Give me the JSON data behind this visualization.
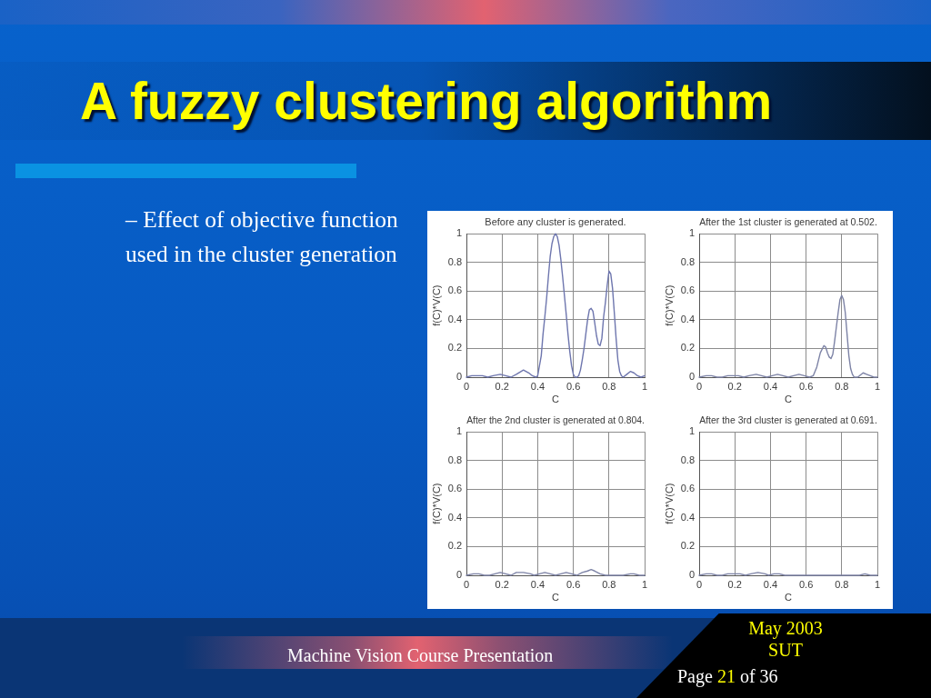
{
  "chart_data": [
    {
      "type": "other",
      "title": "A fuzzy clustering algorithm",
      "annotations": [
        "– Effect of objective function used in the cluster generation",
        "Machine Vision Course Presentation",
        "May 2003",
        "SUT",
        "Page 21 of 36"
      ]
    },
    {
      "type": "line",
      "title": "Before any cluster is generated.",
      "xlabel": "C",
      "ylabel": "f(C)*V(C)",
      "x": [
        0,
        0.03,
        0.06,
        0.09,
        0.12,
        0.15,
        0.19,
        0.22,
        0.25,
        0.28,
        0.32,
        0.35,
        0.37,
        0.39,
        0.4,
        0.41,
        0.42,
        0.43,
        0.44,
        0.45,
        0.46,
        0.47,
        0.48,
        0.49,
        0.5,
        0.51,
        0.52,
        0.53,
        0.54,
        0.55,
        0.56,
        0.57,
        0.58,
        0.59,
        0.6,
        0.61,
        0.62,
        0.63,
        0.64,
        0.65,
        0.66,
        0.67,
        0.68,
        0.69,
        0.7,
        0.71,
        0.72,
        0.73,
        0.74,
        0.75,
        0.76,
        0.77,
        0.78,
        0.79,
        0.8,
        0.81,
        0.82,
        0.83,
        0.84,
        0.85,
        0.86,
        0.87,
        0.88,
        0.9,
        0.92,
        0.94,
        0.96,
        0.98,
        1
      ],
      "series": [
        {
          "color": "#6e76ae",
          "values": [
            0,
            0.01,
            0.01,
            0.01,
            0,
            0.01,
            0.02,
            0.01,
            0,
            0.02,
            0.05,
            0.03,
            0.01,
            0,
            0.01,
            0.08,
            0.15,
            0.3,
            0.42,
            0.55,
            0.7,
            0.84,
            0.93,
            0.98,
            1,
            0.98,
            0.92,
            0.82,
            0.7,
            0.57,
            0.44,
            0.3,
            0.18,
            0.08,
            0.02,
            0,
            0,
            0.01,
            0.05,
            0.12,
            0.2,
            0.3,
            0.4,
            0.47,
            0.48,
            0.46,
            0.38,
            0.29,
            0.23,
            0.22,
            0.27,
            0.42,
            0.52,
            0.64,
            0.74,
            0.72,
            0.62,
            0.45,
            0.27,
            0.12,
            0.04,
            0.01,
            0,
            0.02,
            0.04,
            0.03,
            0.01,
            0,
            0.01
          ]
        }
      ],
      "xlim": [
        0,
        1
      ],
      "xticks": [
        0,
        0.2,
        0.4,
        0.6,
        0.8,
        1
      ],
      "ylim": [
        0,
        1
      ],
      "yticks": [
        0,
        0.2,
        0.4,
        0.6,
        0.8,
        1
      ],
      "grid": true,
      "marker": "none"
    },
    {
      "type": "line",
      "title": "After the 1st cluster is generated at 0.502.",
      "xlabel": "C",
      "ylabel": "f(C)*V(C)",
      "x": [
        0,
        0.04,
        0.07,
        0.1,
        0.13,
        0.16,
        0.19,
        0.22,
        0.25,
        0.28,
        0.32,
        0.35,
        0.38,
        0.41,
        0.44,
        0.47,
        0.5,
        0.53,
        0.56,
        0.59,
        0.62,
        0.64,
        0.66,
        0.68,
        0.7,
        0.71,
        0.72,
        0.73,
        0.74,
        0.75,
        0.76,
        0.77,
        0.78,
        0.79,
        0.8,
        0.81,
        0.82,
        0.83,
        0.84,
        0.85,
        0.86,
        0.87,
        0.89,
        0.92,
        0.94,
        0.96,
        0.98,
        1
      ],
      "series": [
        {
          "color": "#7d83a6",
          "values": [
            0,
            0.01,
            0.01,
            0,
            0,
            0.01,
            0.01,
            0.01,
            0,
            0.01,
            0.02,
            0.01,
            0,
            0.01,
            0.02,
            0.01,
            0,
            0.01,
            0.02,
            0.01,
            0,
            0.01,
            0.07,
            0.17,
            0.22,
            0.21,
            0.17,
            0.14,
            0.13,
            0.16,
            0.25,
            0.35,
            0.45,
            0.54,
            0.57,
            0.54,
            0.45,
            0.3,
            0.15,
            0.06,
            0.02,
            0,
            0,
            0.03,
            0.02,
            0.01,
            0,
            0
          ]
        }
      ],
      "xlim": [
        0,
        1
      ],
      "xticks": [
        0,
        0.2,
        0.4,
        0.6,
        0.8,
        1
      ],
      "ylim": [
        0,
        1
      ],
      "yticks": [
        0,
        0.2,
        0.4,
        0.6,
        0.8,
        1
      ],
      "grid": true,
      "marker": "none"
    },
    {
      "type": "line",
      "title": "After the 2nd cluster is generated at 0.804.",
      "xlabel": "C",
      "ylabel": "f(C)*V(C)",
      "x": [
        0,
        0.04,
        0.07,
        0.1,
        0.13,
        0.16,
        0.19,
        0.22,
        0.25,
        0.28,
        0.32,
        0.36,
        0.38,
        0.41,
        0.44,
        0.47,
        0.5,
        0.53,
        0.56,
        0.59,
        0.62,
        0.65,
        0.68,
        0.7,
        0.72,
        0.75,
        0.78,
        0.84,
        0.88,
        0.92,
        0.94,
        0.97,
        1
      ],
      "series": [
        {
          "color": "#7d83a6",
          "values": [
            0,
            0.01,
            0.01,
            0,
            0,
            0.01,
            0.02,
            0.01,
            0,
            0.02,
            0.02,
            0.01,
            0,
            0.01,
            0.02,
            0.01,
            0,
            0.01,
            0.02,
            0.01,
            0,
            0.02,
            0.03,
            0.04,
            0.03,
            0.01,
            0,
            0,
            0,
            0.01,
            0.01,
            0,
            0
          ]
        }
      ],
      "xlim": [
        0,
        1
      ],
      "xticks": [
        0,
        0.2,
        0.4,
        0.6,
        0.8,
        1
      ],
      "ylim": [
        0,
        1
      ],
      "yticks": [
        0,
        0.2,
        0.4,
        0.6,
        0.8,
        1
      ],
      "grid": true,
      "marker": "none"
    },
    {
      "type": "line",
      "title": "After the 3rd cluster is generated at 0.691.",
      "xlabel": "C",
      "ylabel": "f(C)*V(C)",
      "x": [
        0,
        0.04,
        0.07,
        0.1,
        0.13,
        0.16,
        0.2,
        0.23,
        0.26,
        0.29,
        0.33,
        0.37,
        0.39,
        0.42,
        0.45,
        0.48,
        0.5,
        0.55,
        0.6,
        0.9,
        0.93,
        0.96,
        1
      ],
      "series": [
        {
          "color": "#7d83a6",
          "values": [
            0,
            0.01,
            0.01,
            0,
            0,
            0.01,
            0.01,
            0.01,
            0,
            0.01,
            0.02,
            0.01,
            0,
            0.01,
            0.01,
            0,
            0,
            0,
            0,
            0,
            0.01,
            0,
            0
          ]
        }
      ],
      "xlim": [
        0,
        1
      ],
      "xticks": [
        0,
        0.2,
        0.4,
        0.6,
        0.8,
        1
      ],
      "ylim": [
        0,
        1
      ],
      "yticks": [
        0,
        0.2,
        0.4,
        0.6,
        0.8,
        1
      ],
      "grid": true,
      "marker": "none"
    }
  ]
}
